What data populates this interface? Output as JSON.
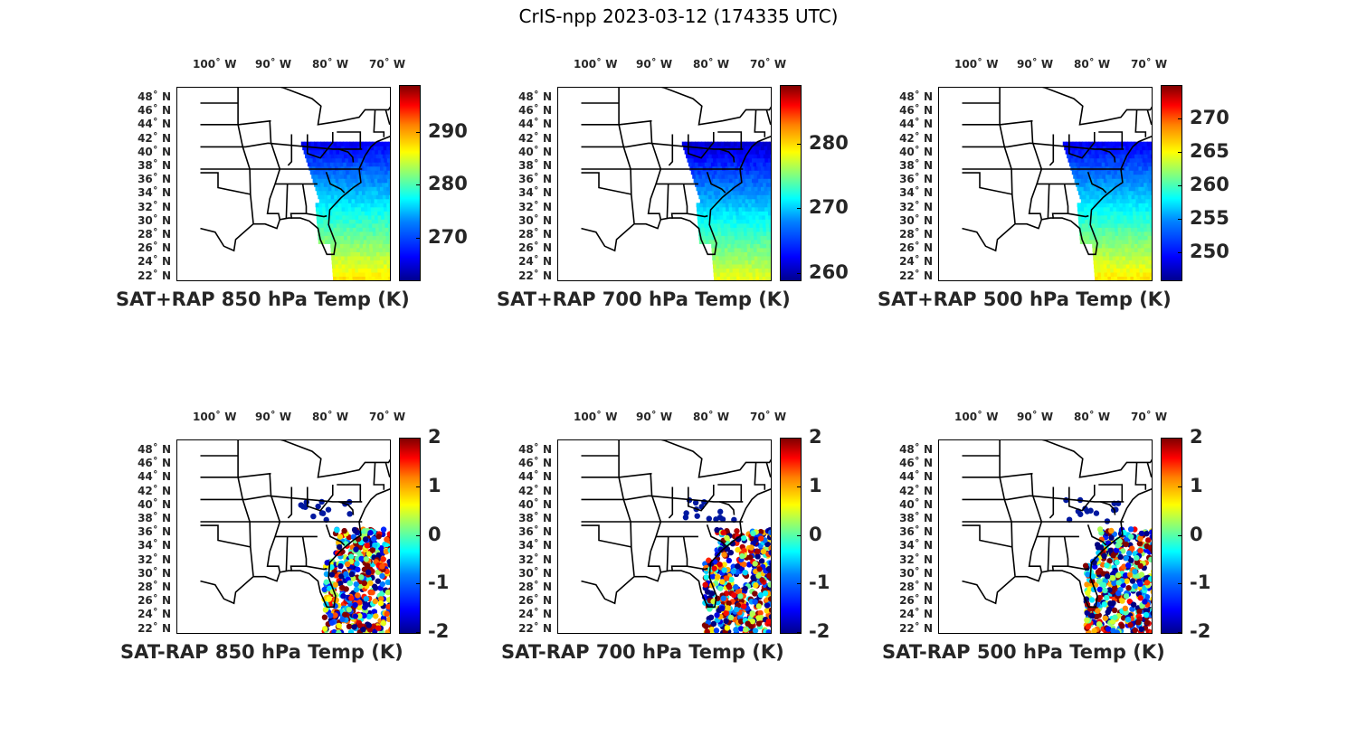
{
  "figure": {
    "title": "CrIS-npp 2023-03-12 (174335 UTC)"
  },
  "lon_labels": [
    "100˚ W",
    "90˚ W",
    "80˚ W",
    "70˚ W"
  ],
  "lat_labels": [
    "48˚ N",
    "46˚ N",
    "44˚ N",
    "42˚ N",
    "40˚ N",
    "38˚ N",
    "36˚ N",
    "34˚ N",
    "32˚ N",
    "30˚ N",
    "28˚ N",
    "26˚ N",
    "24˚ N",
    "22˚ N"
  ],
  "colormap": "jet",
  "panels": [
    {
      "title": "SAT+RAP 850 hPa Temp (K)",
      "colorbar": {
        "ticks": [
          "290",
          "280",
          "270"
        ],
        "range": [
          262,
          299
        ]
      },
      "field": "absolute",
      "level_hpa": 850
    },
    {
      "title": "SAT+RAP 700 hPa Temp (K)",
      "colorbar": {
        "ticks": [
          "280",
          "270",
          "260"
        ],
        "range": [
          259,
          289
        ]
      },
      "field": "absolute",
      "level_hpa": 700
    },
    {
      "title": "SAT+RAP 500 hPa Temp (K)",
      "colorbar": {
        "ticks": [
          "270",
          "265",
          "260",
          "255",
          "250"
        ],
        "range": [
          246,
          275
        ]
      },
      "field": "absolute",
      "level_hpa": 500
    },
    {
      "title": "SAT-RAP 850 hPa Temp (K)",
      "colorbar": {
        "ticks": [
          "2",
          "1",
          "0",
          "-1",
          "-2"
        ],
        "range": [
          -2,
          2
        ]
      },
      "field": "difference",
      "level_hpa": 850
    },
    {
      "title": "SAT-RAP 700 hPa Temp (K)",
      "colorbar": {
        "ticks": [
          "2",
          "1",
          "0",
          "-1",
          "-2"
        ],
        "range": [
          -2,
          2
        ]
      },
      "field": "difference",
      "level_hpa": 700
    },
    {
      "title": "SAT-RAP 500 hPa Temp (K)",
      "colorbar": {
        "ticks": [
          "2",
          "1",
          "0",
          "-1",
          "-2"
        ],
        "range": [
          -2,
          2
        ]
      },
      "field": "difference",
      "level_hpa": 500
    }
  ]
}
